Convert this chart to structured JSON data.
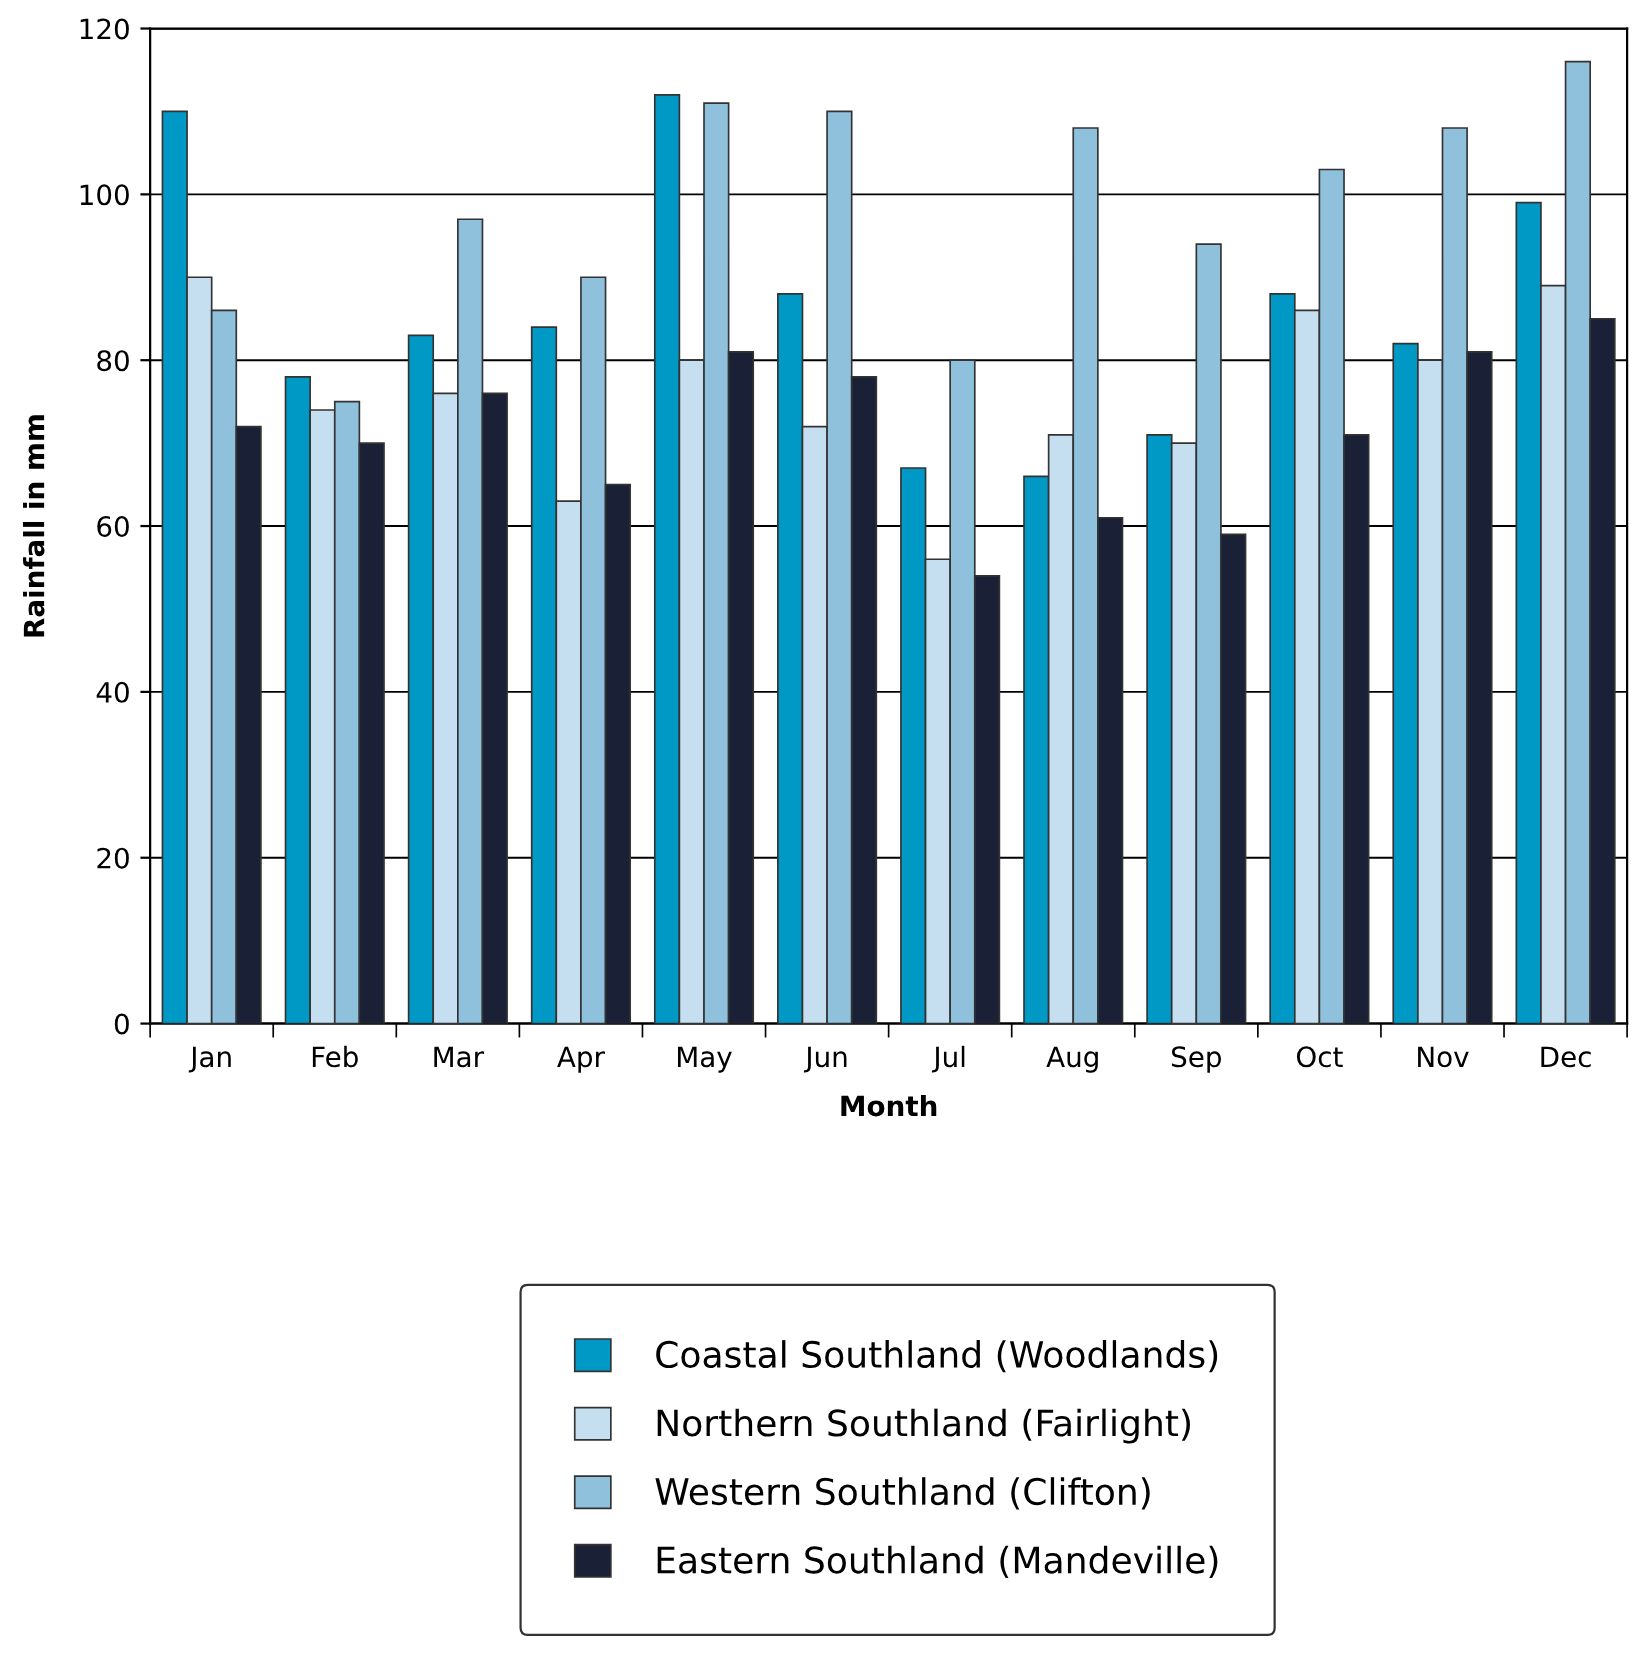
{
  "chart_data": {
    "type": "bar",
    "xlabel": "Month",
    "ylabel": "Rainfall in mm",
    "categories": [
      "Jan",
      "Feb",
      "Mar",
      "Apr",
      "May",
      "Jun",
      "Jul",
      "Aug",
      "Sep",
      "Oct",
      "Nov",
      "Dec"
    ],
    "series": [
      {
        "name": "Coastal Southland (Woodlands)",
        "color": "#0099c6",
        "values": [
          110,
          78,
          83,
          84,
          112,
          88,
          67,
          66,
          71,
          88,
          82,
          99
        ]
      },
      {
        "name": "Northern Southland (Fairlight)",
        "color": "#c6dff0",
        "values": [
          90,
          74,
          76,
          63,
          80,
          72,
          56,
          71,
          70,
          86,
          80,
          89
        ]
      },
      {
        "name": "Western Southland (Clifton)",
        "color": "#8fc1dd",
        "values": [
          86,
          75,
          97,
          90,
          111,
          110,
          80,
          108,
          94,
          103,
          108,
          116
        ]
      },
      {
        "name": "Eastern Southland (Mandeville)",
        "color": "#1a2035",
        "values": [
          72,
          70,
          76,
          65,
          81,
          78,
          54,
          61,
          59,
          71,
          81,
          85
        ]
      }
    ],
    "ylim": [
      0,
      120
    ],
    "yticks": [
      0,
      20,
      40,
      60,
      80,
      100,
      120
    ],
    "grid": "y",
    "legend": "bottom"
  }
}
